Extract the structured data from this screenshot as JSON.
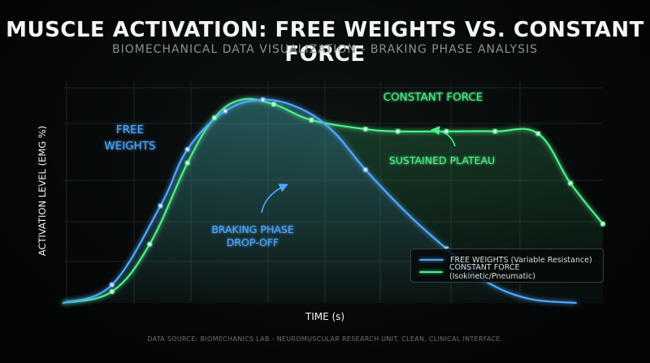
{
  "header": {
    "title": "MUSCLE ACTIVATION: FREE WEIGHTS VS. CONSTANT FORCE",
    "subtitle": "BIOMECHANICAL DATA VISUALIZATION - BRAKING PHASE ANALYSIS"
  },
  "footer": {
    "source": "DATA SOURCE: BIOMECHANICS LAB - NEUROMUSCULAR RESEARCH UNIT. CLEAN, CLINICAL INTERFACE."
  },
  "colors": {
    "free_weights": "#4fa8ff",
    "constant_force": "#4df08a",
    "axis": "#f2f5f4",
    "grid": "#1c2422"
  },
  "chart_data": {
    "type": "line",
    "title": "MUSCLE ACTIVATION: FREE WEIGHTS VS. CONSTANT FORCE",
    "subtitle": "BIOMECHANICAL DATA VISUALIZATION - BRAKING PHASE ANALYSIS",
    "xlabel": "TIME (s)",
    "ylabel": "ACTIVATION LEVEL (EMG %)",
    "xlim": [
      0,
      100
    ],
    "ylim": [
      0,
      100
    ],
    "grid": true,
    "legend_position": "bottom-right",
    "series": [
      {
        "key": "free_weights",
        "name": "FREE WEIGHTS (Variable Resistance)",
        "label_on_chart": [
          "FREE",
          "WEIGHTS"
        ],
        "x": [
          0,
          9,
          18,
          23,
          30,
          37,
          44,
          50,
          56,
          64,
          71,
          78,
          86,
          95
        ],
        "y": [
          0,
          8,
          43,
          68,
          85,
          90,
          86,
          76,
          59,
          39,
          24,
          10,
          2,
          0
        ],
        "markers": [
          9,
          18,
          23,
          30,
          37,
          56,
          71
        ]
      },
      {
        "key": "constant_force",
        "name": "CONSTANT FORCE (Isokinetic/Pneumatic)",
        "label_on_chart": [
          "CONSTANT FORCE"
        ],
        "x": [
          0,
          9,
          16,
          23,
          28,
          33,
          39,
          46,
          56,
          62,
          71,
          80,
          88,
          94,
          100
        ],
        "y": [
          0,
          5,
          26,
          62,
          82,
          90,
          88,
          81,
          77,
          76,
          76,
          76,
          75,
          53,
          35
        ],
        "markers": [
          9,
          16,
          23,
          28,
          39,
          46,
          56,
          62,
          71,
          80,
          88,
          94,
          100
        ]
      }
    ],
    "annotations": [
      {
        "key": "braking",
        "lines": [
          "BRAKING PHASE",
          "DROP-OFF"
        ]
      },
      {
        "key": "plateau",
        "lines": [
          "SUSTAINED PLATEAU"
        ]
      }
    ]
  }
}
